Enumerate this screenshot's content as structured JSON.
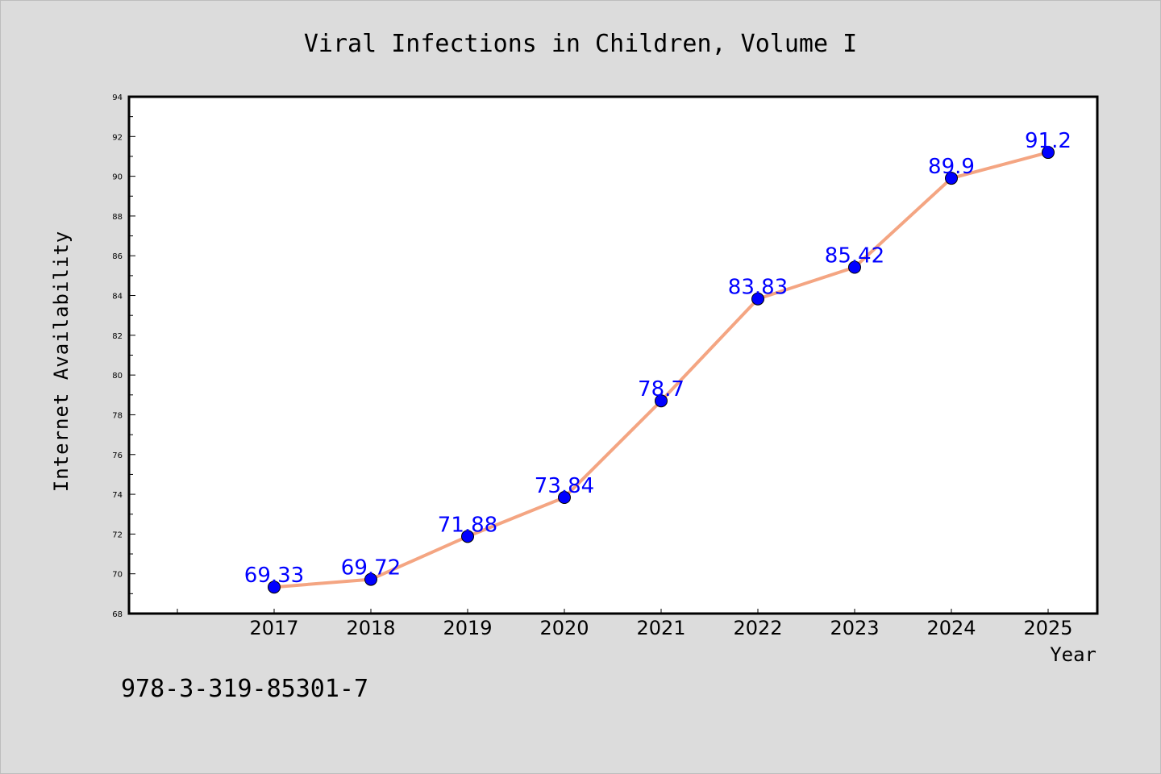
{
  "isbn": "978-3-319-85301-7",
  "colors": {
    "line": "#f4a582",
    "marker": "#0000ff",
    "label": "#0000ff",
    "background": "#dcdcdc",
    "plot_bg": "#ffffff"
  },
  "chart_data": {
    "type": "line",
    "title": "Viral Infections in Children, Volume I",
    "xlabel": "Year",
    "ylabel": "Internet Availability",
    "categories": [
      "2017",
      "2018",
      "2019",
      "2020",
      "2021",
      "2022",
      "2023",
      "2024",
      "2025"
    ],
    "series": [
      {
        "values": [
          69.33,
          69.72,
          71.88,
          73.84,
          78.7,
          83.83,
          85.42,
          89.9,
          91.2
        ]
      }
    ],
    "data_labels": [
      "69.33",
      "69.72",
      "71.88",
      "73.84",
      "78.7",
      "83.83",
      "85.42",
      "89.9",
      "91.2"
    ],
    "ylim": [
      68,
      94
    ],
    "yticks": [
      "68",
      "70",
      "72",
      "74",
      "76",
      "78",
      "80",
      "82",
      "84",
      "86",
      "88",
      "90",
      "92",
      "94"
    ],
    "grid": false,
    "legend": "none"
  }
}
